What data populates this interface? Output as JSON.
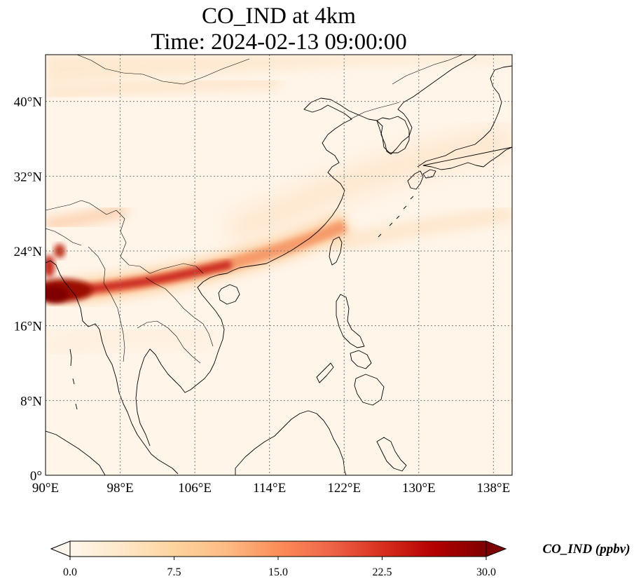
{
  "title": {
    "line1": "CO_IND at 4km",
    "line2": "Time: 2024-02-13 09:00:00"
  },
  "map": {
    "lon_range": [
      90,
      140
    ],
    "lat_range": [
      0,
      45
    ],
    "lon_ticks": [
      90,
      98,
      106,
      114,
      122,
      130,
      138
    ],
    "lat_ticks": [
      0,
      8,
      16,
      24,
      32,
      40
    ],
    "lon_tick_labels": [
      "90°E",
      "98°E",
      "106°E",
      "114°E",
      "122°E",
      "130°E",
      "138°E"
    ],
    "lat_tick_labels": [
      "0°",
      "8°N",
      "16°N",
      "24°N",
      "32°N",
      "40°N"
    ],
    "gridlines": true,
    "colormap": "OrRd"
  },
  "colorbar": {
    "label": "CO_IND (ppbv)",
    "vmin": 0.0,
    "vmax": 30.0,
    "ticks": [
      0,
      7.5,
      15,
      22.5,
      30
    ],
    "tick_labels": [
      "0.0",
      "7.5",
      "15.0",
      "22.5",
      "30.0"
    ],
    "extend": "both",
    "colors": [
      "#fff7ec",
      "#fee8c8",
      "#fdd49e",
      "#fdbb84",
      "#fc8d59",
      "#ef6548",
      "#d7301f",
      "#b30000",
      "#7f0000"
    ]
  }
}
